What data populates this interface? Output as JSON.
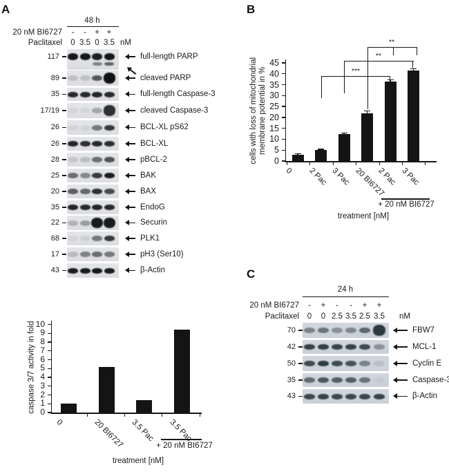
{
  "figure": {
    "panel_a": {
      "label": "A",
      "time": "48 h",
      "row1_label": "20 nM BI6727",
      "row1_values": [
        "-",
        "-",
        "+",
        "+"
      ],
      "row2_label": "Paclitaxel",
      "row2_values": [
        "0",
        "3.5",
        "0",
        "3.5"
      ],
      "unit": "nM",
      "blots": [
        {
          "mw": "117",
          "label": "full-length PARP",
          "bands": [
            0.97,
            0.97,
            0.93,
            0.97
          ],
          "sub": [
            0,
            0,
            0.45,
            0.6
          ]
        },
        {
          "mw": "89",
          "label": "cleaved PARP",
          "bands": [
            0.15,
            0.15,
            0.65,
            1.0
          ],
          "tall": [
            3
          ]
        },
        {
          "mw": "35",
          "label": "full-length Caspase-3",
          "bands": [
            0.88,
            0.88,
            0.9,
            0.88
          ]
        },
        {
          "mw": "17/19",
          "label": "cleaved Caspase-3",
          "bands": [
            0.05,
            0.05,
            0.28,
            0.85
          ],
          "tall": [
            3
          ]
        },
        {
          "mw": "26",
          "label": "BCL-XL pS62",
          "bands": [
            0.06,
            0.06,
            0.5,
            0.8
          ]
        },
        {
          "mw": "26",
          "label": "BCL-XL",
          "bands": [
            0.9,
            0.85,
            0.88,
            0.85
          ]
        },
        {
          "mw": "28",
          "label": "pBCL-2",
          "bands": [
            0.12,
            0.16,
            0.55,
            0.68
          ]
        },
        {
          "mw": "25",
          "label": "BAK",
          "bands": [
            0.55,
            0.42,
            0.8,
            0.95
          ]
        },
        {
          "mw": "20",
          "label": "BAX",
          "bands": [
            0.62,
            0.58,
            0.85,
            0.72
          ]
        },
        {
          "mw": "35",
          "label": "EndoG",
          "bands": [
            0.9,
            0.88,
            0.9,
            0.88
          ]
        },
        {
          "mw": "22",
          "label": "Securin",
          "bands": [
            0.22,
            0.32,
            0.95,
            0.95
          ],
          "tall": [
            2,
            3
          ]
        },
        {
          "mw": "68",
          "label": "PLK1",
          "bands": [
            0.05,
            0.08,
            0.5,
            0.8
          ]
        },
        {
          "mw": "17",
          "label": "pH3 (Ser10)",
          "bands": [
            0.18,
            0.45,
            0.55,
            0.5
          ]
        },
        {
          "mw": "43",
          "label": "β-Actin",
          "bands": [
            0.95,
            0.95,
            0.97,
            0.95
          ]
        }
      ]
    },
    "panel_b": {
      "label": "B"
    },
    "panel_c": {
      "label": "C",
      "time": "24 h",
      "row1_label": "20 nM BI6727",
      "row1_values": [
        "-",
        "+",
        "-",
        "-",
        "+",
        "+"
      ],
      "row2_label": "Paclitaxel",
      "row2_values": [
        "0",
        "0",
        "2.5",
        "3.5",
        "2.5",
        "3.5"
      ],
      "unit": "nM",
      "blots": [
        {
          "mw": "70",
          "label": "FBW7",
          "bands": [
            0.5,
            0.6,
            0.42,
            0.48,
            0.68,
            0.97
          ],
          "tall": [
            5
          ]
        },
        {
          "mw": "42",
          "label": "MCL-1",
          "bands": [
            0.9,
            0.93,
            0.9,
            0.9,
            0.85,
            0.4
          ]
        },
        {
          "mw": "50",
          "label": "Cyclin E",
          "bands": [
            0.85,
            0.95,
            0.85,
            0.8,
            0.5,
            0.12
          ]
        },
        {
          "mw": "35",
          "label": "Caspase-3",
          "bands": [
            0.65,
            0.78,
            0.72,
            0.72,
            0.6,
            0.05
          ]
        },
        {
          "mw": "43",
          "label": "β-Actin",
          "bands": [
            0.88,
            0.9,
            0.88,
            0.88,
            0.88,
            0.9
          ]
        }
      ]
    }
  },
  "chart_data": [
    {
      "id": "caspase_activity",
      "panel": "A",
      "type": "bar",
      "categories": [
        "0",
        "20 BI6727",
        "3.5 Pac",
        "3.5 Pac"
      ],
      "values": [
        1.0,
        5.2,
        1.4,
        9.4
      ],
      "title": "",
      "xlabel": "treatment [nM]",
      "ylabel": "caspase 3/7 activity in fold",
      "ylim": [
        0,
        10
      ],
      "ytick_step": 1,
      "grid": false,
      "bar_color": "#141414",
      "group_annotation": {
        "text": "+ 20 nM BI6727",
        "applies_to": [
          "3.5 Pac"
        ]
      }
    },
    {
      "id": "mitochondrial_membrane_potential_loss",
      "panel": "B",
      "type": "bar",
      "categories": [
        "0",
        "2 Pac",
        "3 Pac",
        "20 BI6727",
        "2 Pac",
        "3 Pac"
      ],
      "values": [
        3,
        5,
        12.3,
        22,
        36.3,
        41.5
      ],
      "errors": [
        0.3,
        0.4,
        0.5,
        1.0,
        0.8,
        0.8
      ],
      "title": "",
      "xlabel": "treatment [nM]",
      "ylabel": "cells with loss of mitochondrial membrane potential in %",
      "ylabel_lines": [
        "cells with loss of mitochondrial",
        "membrane potential in %"
      ],
      "ylim": [
        0,
        45
      ],
      "ytick_step": 5,
      "grid": false,
      "bar_color": "#141414",
      "group_annotation": {
        "text": "+ 20 nM BI6727",
        "applies_to": [
          "2 Pac",
          "3 Pac"
        ]
      },
      "significance": [
        {
          "label": "***",
          "between": [
            "2 Pac",
            "2 Pac + 20 nM BI6727"
          ]
        },
        {
          "label": "**",
          "between": [
            "3 Pac",
            "3 Pac + 20 nM BI6727"
          ]
        },
        {
          "label": "**",
          "between": [
            "20 BI6727",
            "2 Pac / 3 Pac + 20 nM BI6727"
          ]
        }
      ]
    }
  ],
  "colors": {
    "bar": "#141414",
    "band_a": "#101114",
    "band_c": "#26343c",
    "strip_a": "#e0e2e4",
    "strip_c": "#cfd4db",
    "line": "#161616"
  }
}
